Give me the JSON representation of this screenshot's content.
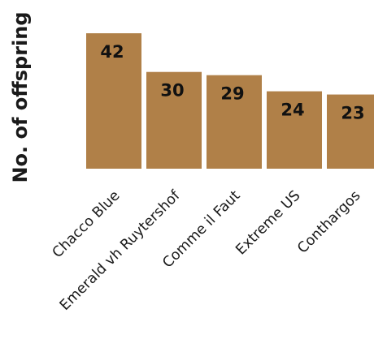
{
  "chart_data": {
    "type": "bar",
    "title": "",
    "xlabel": "",
    "ylabel": "No. of offspring",
    "categories": [
      "Chacco Blue",
      "Emerald vh Ruytershof",
      "Comme il Faut",
      "Extreme US",
      "Conthargos"
    ],
    "values": [
      42,
      30,
      29,
      24,
      23
    ],
    "ylim": [
      0,
      42
    ],
    "grid": false,
    "legend": "none",
    "bar_color": "#b08048",
    "value_labels": true
  }
}
